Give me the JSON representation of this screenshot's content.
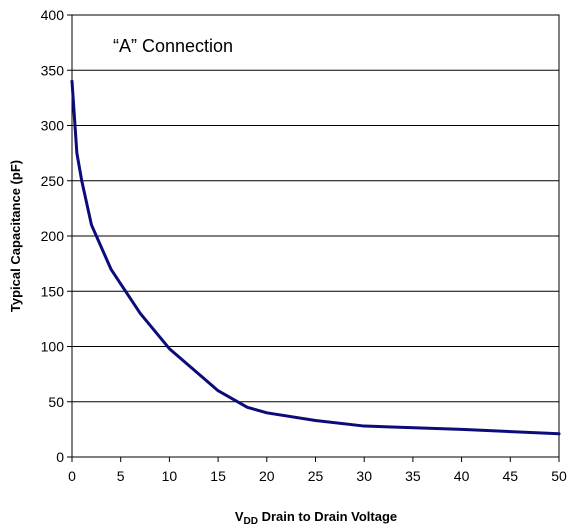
{
  "chart_data": {
    "type": "line",
    "title": "",
    "annotation": "“A” Connection",
    "xlabel_main": "V",
    "xlabel_sub": "DD",
    "xlabel_rest": " Drain to Drain Voltage",
    "ylabel": "Typical Capacitance (pF)",
    "xlim": [
      0,
      50
    ],
    "ylim": [
      0,
      400
    ],
    "xticks": [
      0,
      5,
      10,
      15,
      20,
      25,
      30,
      35,
      40,
      45,
      50
    ],
    "yticks": [
      0,
      50,
      100,
      150,
      200,
      250,
      300,
      350,
      400
    ],
    "grid": "horizontal",
    "series": [
      {
        "color": "#0b0b7a",
        "x": [
          0,
          0.5,
          1,
          2,
          4,
          7,
          10,
          15,
          18,
          20,
          25,
          30,
          40,
          50
        ],
        "y": [
          340,
          275,
          250,
          210,
          170,
          130,
          98,
          60,
          45,
          40,
          33,
          28,
          25,
          21
        ]
      }
    ]
  }
}
